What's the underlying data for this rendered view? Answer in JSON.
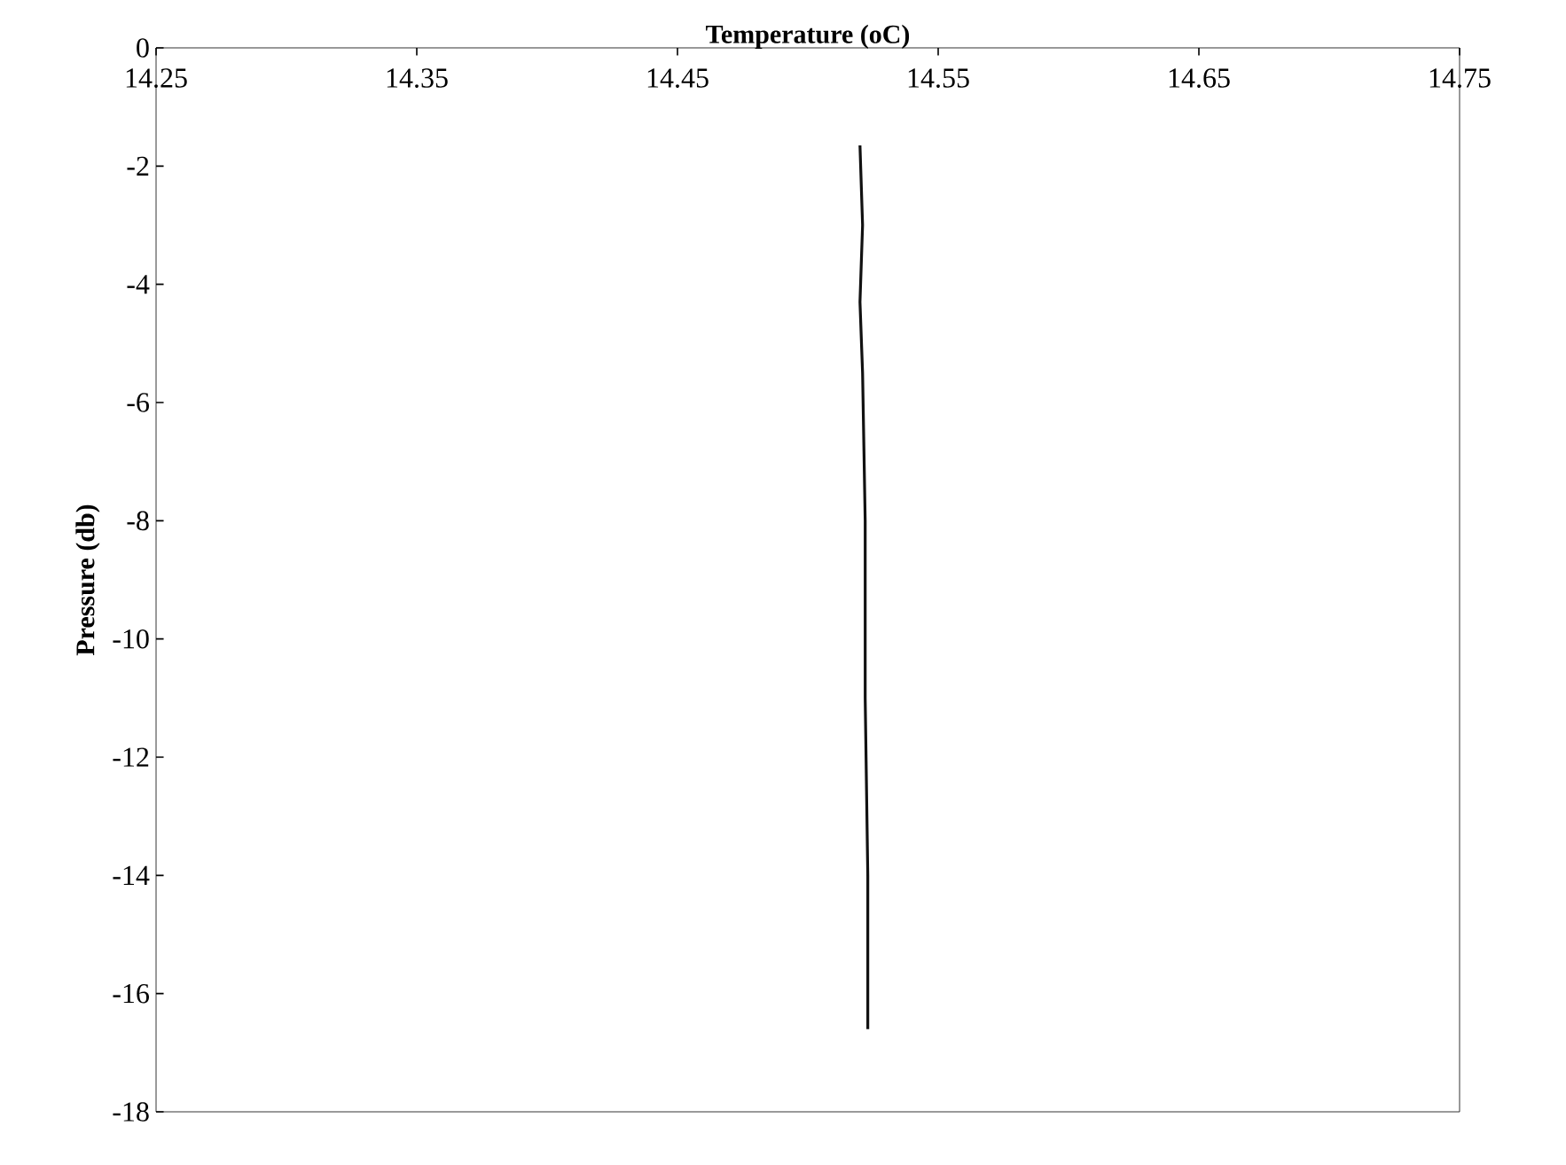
{
  "chart_data": {
    "type": "line",
    "xlabel": "Temperature (oC)",
    "ylabel": "Pressure (db)",
    "series": [
      {
        "color": "#111111",
        "x": [
          14.52,
          14.521,
          14.52,
          14.521,
          14.522,
          14.522,
          14.523,
          14.523
        ],
        "values": [
          -1.65,
          -3.0,
          -4.3,
          -5.5,
          -8,
          -11,
          -14,
          -16.6
        ]
      }
    ],
    "xlim": [
      14.25,
      14.75
    ],
    "xticks": [
      14.25,
      14.35,
      14.45,
      14.55,
      14.65,
      14.75
    ],
    "ylim": [
      -18,
      0
    ],
    "yticks": [
      0,
      -2,
      -4,
      -6,
      -8,
      -10,
      -12,
      -14,
      -16,
      -18
    ],
    "marker": "none",
    "line_style": "solid",
    "grid": false
  }
}
